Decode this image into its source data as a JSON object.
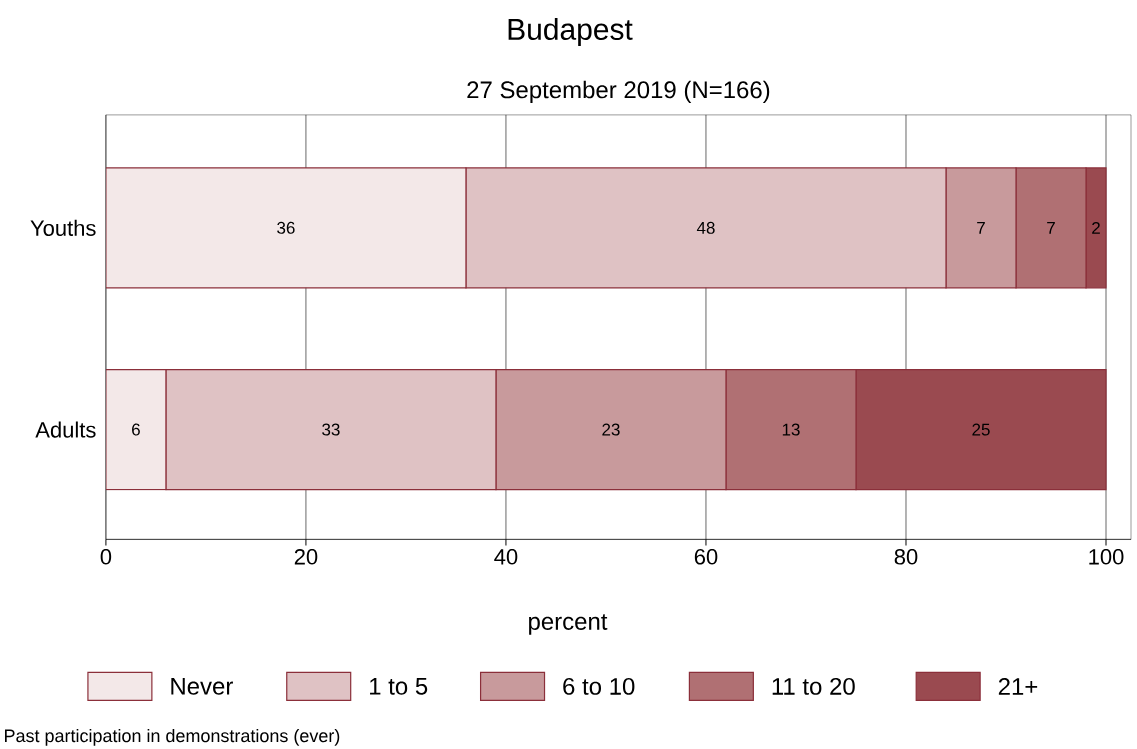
{
  "chart_data": {
    "type": "bar",
    "orientation": "horizontal",
    "stacked": true,
    "title": "Budapest",
    "subtitle": "27 September 2019 (N=166)",
    "xlabel": "percent",
    "categories": [
      "Youths",
      "Adults"
    ],
    "series": [
      {
        "name": "Never",
        "color": "#f3e8e8",
        "values": [
          36,
          6
        ]
      },
      {
        "name": "1 to 5",
        "color": "#dfc2c4",
        "values": [
          48,
          33
        ]
      },
      {
        "name": "6 to 10",
        "color": "#c89a9c",
        "values": [
          7,
          23
        ]
      },
      {
        "name": "11 to 20",
        "color": "#b07073",
        "values": [
          7,
          13
        ]
      },
      {
        "name": "21+",
        "color": "#9a4a50",
        "values": [
          2,
          25
        ]
      }
    ],
    "xlim": [
      0,
      102.5
    ],
    "xticks": [
      0,
      20,
      40,
      60,
      80,
      100
    ],
    "grid": "x",
    "legend": "bottom",
    "data_labels": true,
    "annotations": [
      "Past participation in demonstrations (ever)"
    ]
  }
}
